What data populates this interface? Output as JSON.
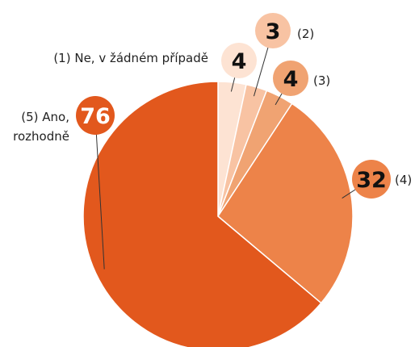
{
  "chart_data": {
    "type": "pie",
    "categories": [
      "(1) Ne, v žádném případě",
      "(2)",
      "(3)",
      "(4)",
      "(5) Ano, rozhodně"
    ],
    "values": [
      4,
      3,
      4,
      32,
      76
    ],
    "colors": [
      "#fde3d3",
      "#f8c3a3",
      "#f0a372",
      "#ed8349",
      "#e2581d"
    ]
  }
}
